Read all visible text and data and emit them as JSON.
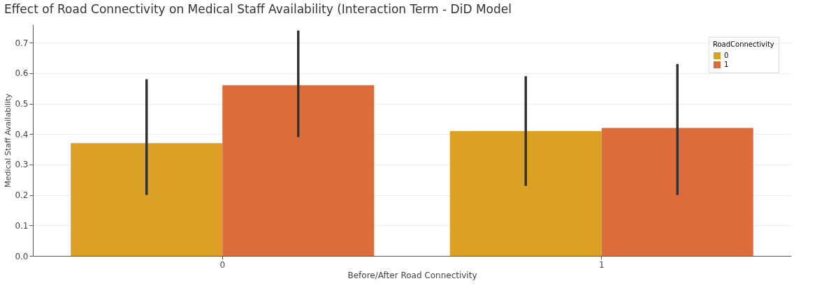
{
  "chart_data": {
    "type": "bar",
    "title": "Effect of Road Connectivity on Medical Staff Availability (Interaction Term - DiD Model",
    "xlabel": "Before/After Road Connectivity",
    "ylabel": "Medical Staff Availability",
    "legend_title": "RoadConnectivity",
    "categories": [
      "0",
      "1"
    ],
    "series": [
      {
        "name": "0",
        "color": "#dba125",
        "values": [
          0.37,
          0.41
        ],
        "errors": [
          [
            0.2,
            0.58
          ],
          [
            0.23,
            0.59
          ]
        ]
      },
      {
        "name": "1",
        "color": "#dc6d3a",
        "values": [
          0.56,
          0.42
        ],
        "errors": [
          [
            0.39,
            0.74
          ],
          [
            0.2,
            0.63
          ]
        ]
      }
    ],
    "ylim": [
      0,
      0.76
    ],
    "yticks": [
      {
        "value": 0,
        "label": "0.0"
      },
      0.1,
      0.2,
      0.3,
      0.4,
      0.5,
      0.6,
      0.7
    ],
    "grid": "y",
    "legend": "top right"
  }
}
